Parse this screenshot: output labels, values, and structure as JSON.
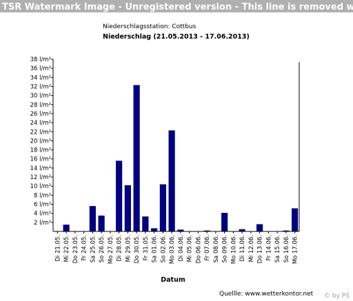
{
  "banner": "TSR Watermark Image - Unregistered version - This line is removed when registered",
  "source_label": "Quellle: www.wetterkontor.net",
  "copyright": "© by PS",
  "colors": {
    "bar": "#000080",
    "banner_bg": "#b0b0b0"
  },
  "chart_data": {
    "type": "bar",
    "station": "Niederschlagsstation: Cottbus",
    "title": "Niederschlag (21.05.2013 - 17.06.2013)",
    "xlabel": "Datum",
    "ylabel": "",
    "ylim": [
      0,
      38
    ],
    "yticks": [
      2,
      4,
      6,
      8,
      10,
      12,
      14,
      16,
      18,
      20,
      22,
      24,
      26,
      28,
      30,
      32,
      34,
      36,
      38
    ],
    "yunit": "l/m²",
    "grid": false,
    "categories": [
      "Di 21.05.",
      "Mi 22.05.",
      "Do 23.05.",
      "Fr 24.05.",
      "Sa 25.05.",
      "So 26.05.",
      "Mo 27.05.",
      "Di 28.05.",
      "Mi 29.05.",
      "Do 30.05.",
      "Fr 31.05.",
      "Sa 01.06.",
      "So 02.06.",
      "Mo 03.06.",
      "Di 04.06.",
      "Mi 05.06.",
      "Do 06.06.",
      "Fr 07.06.",
      "Sa 08.06.",
      "So 09.06.",
      "Mo 10.06.",
      "Di 11.06.",
      "Mi 12.06.",
      "Do 13.06.",
      "Fr 14.06.",
      "Sa 15.06.",
      "So 16.06.",
      "Mo 17.06."
    ],
    "values": [
      0,
      1.5,
      0,
      0,
      5.6,
      3.5,
      0,
      15.6,
      10.2,
      32.3,
      3.3,
      0.7,
      10.4,
      22.3,
      0.4,
      0,
      0,
      0.2,
      0,
      4.1,
      0,
      0.5,
      0,
      1.6,
      0,
      0,
      0.2,
      5.1
    ]
  }
}
